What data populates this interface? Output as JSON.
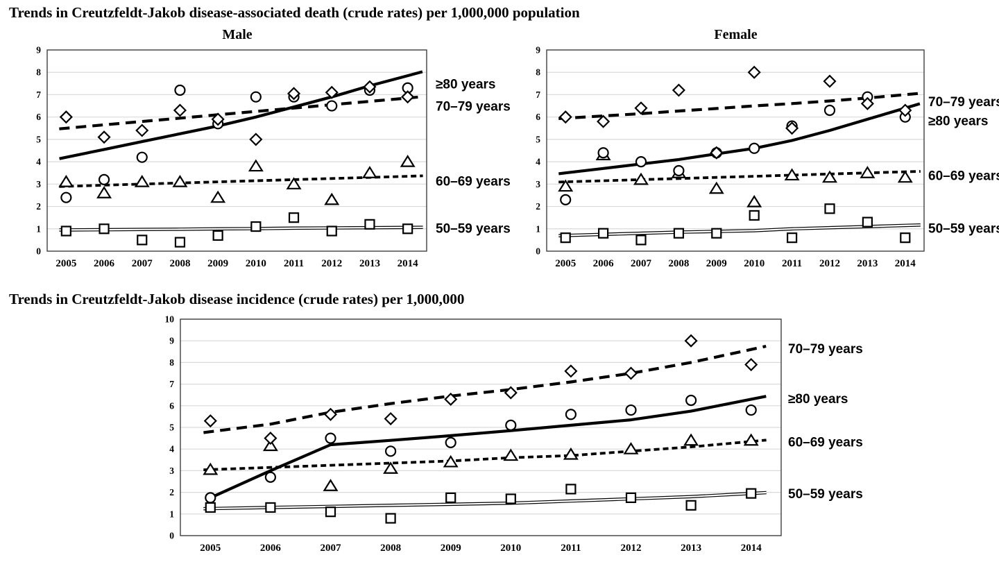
{
  "titles": {
    "death": "Trends in Creutzfeldt-Jakob disease-associated death (crude rates) per 1,000,000 population",
    "incidence": "Trends in Creutzfeldt-Jakob disease incidence (crude rates) per 1,000,000"
  },
  "colors": {
    "line": "#000000",
    "grid": "#d9d9d9",
    "border": "#3f3f3f",
    "background": "#ffffff"
  },
  "chart_data": [
    {
      "id": "male",
      "type": "scatter",
      "title": "Male",
      "xlabel": "",
      "ylabel": "",
      "grid": true,
      "legend_position": "right",
      "x": [
        2005,
        2006,
        2007,
        2008,
        2009,
        2010,
        2011,
        2012,
        2013,
        2014
      ],
      "ylim": [
        0,
        9
      ],
      "marker_order": [
        0,
        1,
        3,
        2
      ],
      "series": [
        {
          "name": "50–59 years",
          "marker": "square",
          "line": "double-thin",
          "label_value": 1.0,
          "values": [
            0.9,
            1.0,
            0.5,
            0.4,
            0.7,
            1.1,
            1.5,
            0.9,
            1.2,
            1.0
          ],
          "trend": [
            0.95,
            0.96,
            0.97,
            0.98,
            1.0,
            1.01,
            1.03,
            1.04,
            1.05,
            1.06
          ]
        },
        {
          "name": "60–69 years",
          "marker": "triangle",
          "line": "short-dash",
          "label_value": 3.1,
          "values": [
            3.1,
            2.6,
            3.1,
            3.1,
            2.4,
            3.8,
            3.0,
            2.3,
            3.5,
            4.0
          ],
          "trend": [
            2.9,
            2.95,
            3.0,
            3.05,
            3.1,
            3.15,
            3.2,
            3.25,
            3.3,
            3.35
          ]
        },
        {
          "name": "70–79 years",
          "marker": "diamond",
          "line": "long-dash",
          "label_value": 6.45,
          "values": [
            6.0,
            5.1,
            5.4,
            6.3,
            5.9,
            5.0,
            7.05,
            7.1,
            7.35,
            6.9
          ],
          "trend": [
            5.5,
            5.65,
            5.8,
            5.95,
            6.1,
            6.25,
            6.4,
            6.55,
            6.7,
            6.85
          ]
        },
        {
          "name": "≥80 years",
          "marker": "circle",
          "line": "solid-thick",
          "label_value": 7.45,
          "values": [
            2.4,
            3.2,
            4.2,
            7.2,
            5.7,
            6.9,
            6.9,
            6.5,
            7.2,
            7.3
          ],
          "trend": [
            4.2,
            4.55,
            4.9,
            5.25,
            5.6,
            6.0,
            6.45,
            6.9,
            7.4,
            7.85
          ]
        }
      ]
    },
    {
      "id": "female",
      "type": "scatter",
      "title": "Female",
      "xlabel": "",
      "ylabel": "",
      "grid": true,
      "legend_position": "right",
      "x": [
        2005,
        2006,
        2007,
        2008,
        2009,
        2010,
        2011,
        2012,
        2013,
        2014
      ],
      "ylim": [
        0,
        9
      ],
      "series": [
        {
          "name": "50–59 years",
          "marker": "square",
          "line": "double-thin",
          "label_value": 1.0,
          "values": [
            0.6,
            0.8,
            0.5,
            0.8,
            0.8,
            1.6,
            0.6,
            1.9,
            1.3,
            0.6
          ],
          "trend": [
            0.7,
            0.75,
            0.8,
            0.85,
            0.88,
            0.92,
            1.0,
            1.05,
            1.1,
            1.15
          ]
        },
        {
          "name": "60–69 years",
          "marker": "triangle",
          "line": "short-dash",
          "label_value": 3.35,
          "values": [
            2.9,
            4.3,
            3.2,
            3.5,
            2.8,
            2.2,
            3.4,
            3.3,
            3.5,
            3.3
          ],
          "trend": [
            3.1,
            3.15,
            3.2,
            3.25,
            3.3,
            3.35,
            3.4,
            3.45,
            3.5,
            3.55
          ]
        },
        {
          "name": "≥80 years",
          "marker": "circle",
          "line": "solid-thick",
          "label_value": 5.8,
          "values": [
            2.3,
            4.4,
            4.0,
            3.6,
            4.4,
            4.6,
            5.6,
            6.3,
            6.9,
            6.0
          ],
          "trend": [
            3.5,
            3.7,
            3.9,
            4.1,
            4.35,
            4.6,
            4.95,
            5.4,
            5.9,
            6.4
          ]
        },
        {
          "name": "70–79 years",
          "marker": "diamond",
          "line": "long-dash",
          "label_value": 6.65,
          "values": [
            6.0,
            5.8,
            6.4,
            7.2,
            4.4,
            8.0,
            5.5,
            7.6,
            6.6,
            6.3
          ],
          "trend": [
            5.95,
            6.05,
            6.15,
            6.27,
            6.38,
            6.5,
            6.6,
            6.72,
            6.85,
            7.0
          ]
        }
      ]
    },
    {
      "id": "incidence",
      "type": "scatter",
      "title": "",
      "xlabel": "",
      "ylabel": "",
      "grid": true,
      "legend_position": "right",
      "x": [
        2005,
        2006,
        2007,
        2008,
        2009,
        2010,
        2011,
        2012,
        2013,
        2014
      ],
      "ylim": [
        0,
        10
      ],
      "series": [
        {
          "name": "50–59 years",
          "marker": "square",
          "line": "double-thin",
          "label_value": 1.9,
          "values": [
            1.3,
            1.3,
            1.1,
            0.8,
            1.75,
            1.7,
            2.15,
            1.75,
            1.4,
            1.95
          ],
          "trend": [
            1.25,
            1.3,
            1.35,
            1.4,
            1.45,
            1.5,
            1.6,
            1.7,
            1.8,
            1.95
          ]
        },
        {
          "name": "60–69 years",
          "marker": "triangle",
          "line": "short-dash",
          "label_value": 4.3,
          "values": [
            3.05,
            4.15,
            2.3,
            3.1,
            3.4,
            3.7,
            3.75,
            4.0,
            4.4,
            4.4
          ],
          "trend": [
            3.05,
            3.15,
            3.25,
            3.35,
            3.45,
            3.6,
            3.7,
            3.9,
            4.1,
            4.35
          ]
        },
        {
          "name": "≥80 years",
          "marker": "circle",
          "line": "solid-thick",
          "label_value": 6.3,
          "trend_extend_start": false,
          "values": [
            1.75,
            2.7,
            4.5,
            3.9,
            4.3,
            5.1,
            5.6,
            5.8,
            6.25,
            5.8
          ],
          "trend": [
            1.75,
            3.0,
            4.2,
            4.4,
            4.62,
            4.85,
            5.1,
            5.35,
            5.75,
            6.3
          ]
        },
        {
          "name": "70–79 years",
          "marker": "diamond",
          "line": "long-dash",
          "label_value": 8.6,
          "values": [
            5.3,
            4.5,
            5.6,
            5.4,
            6.3,
            6.6,
            7.6,
            7.5,
            9.0,
            7.9
          ],
          "trend": [
            4.8,
            5.15,
            5.7,
            6.1,
            6.45,
            6.75,
            7.1,
            7.5,
            8.0,
            8.6
          ]
        }
      ]
    }
  ]
}
